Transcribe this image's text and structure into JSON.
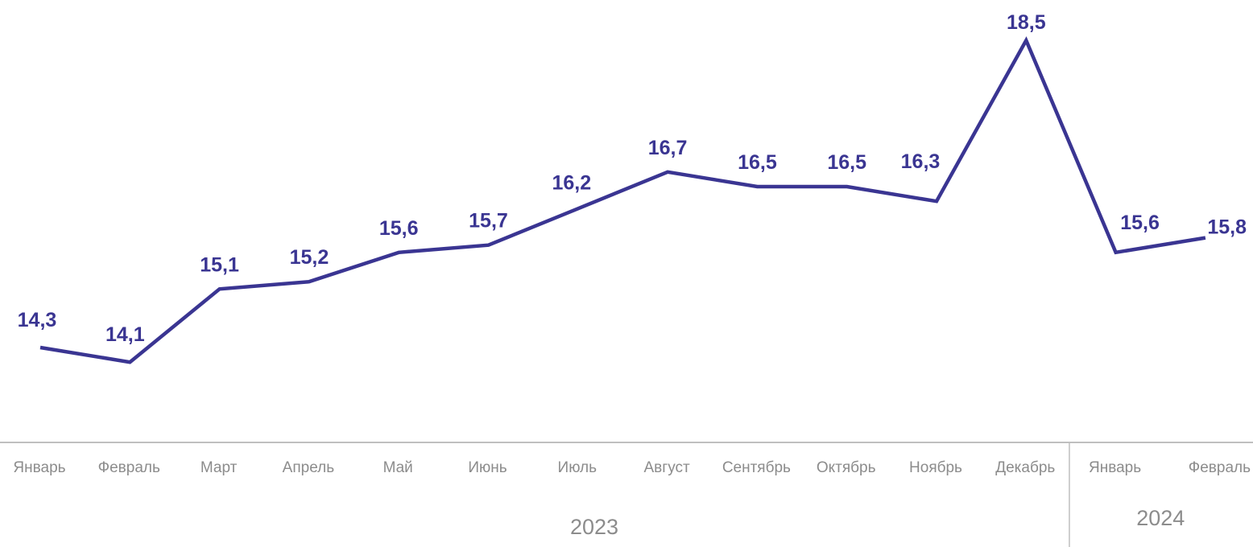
{
  "chart_data": {
    "type": "line",
    "categories": [
      "Январь",
      "Февраль",
      "Март",
      "Апрель",
      "Май",
      "Июнь",
      "Июль",
      "Август",
      "Сентябрь",
      "Октябрь",
      "Ноябрь",
      "Декабрь",
      "Январь",
      "Февраль"
    ],
    "groups": [
      {
        "label": "2023",
        "start": 0,
        "end": 11
      },
      {
        "label": "2024",
        "start": 12,
        "end": 13
      }
    ],
    "series": [
      {
        "values": [
          14.3,
          14.1,
          15.1,
          15.2,
          15.6,
          15.7,
          16.2,
          16.7,
          16.5,
          16.5,
          16.3,
          18.5,
          15.6,
          15.8
        ],
        "labels": [
          "14,3",
          "14,1",
          "15,1",
          "15,2",
          "15,6",
          "15,7",
          "16,2",
          "16,7",
          "16,5",
          "16,5",
          "16,3",
          "18,5",
          "15,6",
          "15,8"
        ]
      }
    ],
    "title": "",
    "xlabel": "",
    "ylabel": "",
    "grid": false,
    "legend": "none",
    "line_color": "#3a3592",
    "label_color": "#3a3592",
    "axis_color": "#bfbfbf",
    "text_color": "#8c8c8c"
  }
}
